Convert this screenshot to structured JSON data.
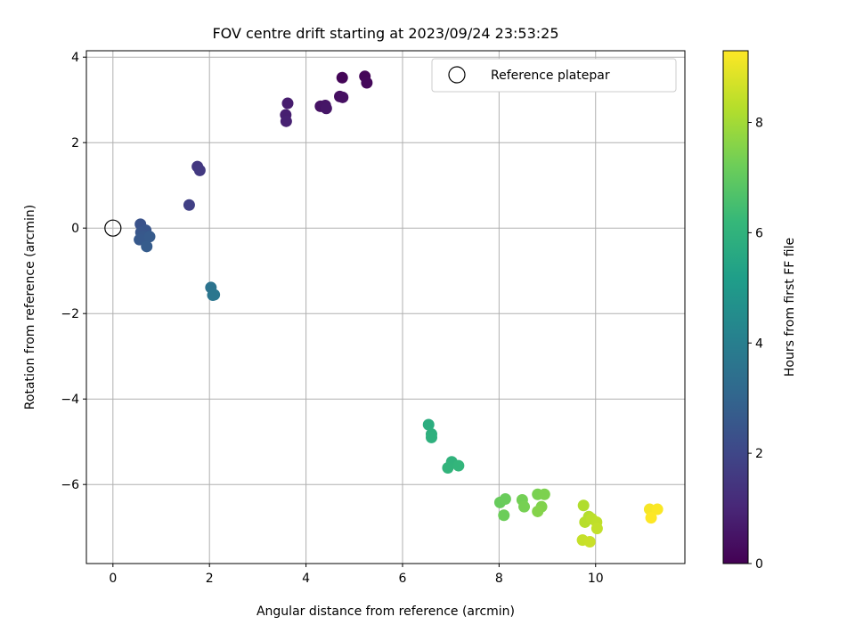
{
  "chart_data": {
    "type": "scatter",
    "title": "FOV centre drift starting at 2023/09/24 23:53:25",
    "xlabel": "Angular distance from reference (arcmin)",
    "ylabel": "Rotation from reference (arcmin)",
    "xlim": [
      -0.55,
      11.85
    ],
    "ylim": [
      -7.85,
      4.15
    ],
    "xticks": [
      0,
      2,
      4,
      6,
      8,
      10
    ],
    "yticks": [
      -6,
      -4,
      -2,
      0,
      2,
      4
    ],
    "grid": true,
    "legend": {
      "placement": "top-right",
      "entries": [
        "Reference platepar"
      ]
    },
    "reference_point": {
      "x": 0,
      "y": 0
    },
    "colorbar": {
      "label": "Hours from first FF file",
      "range": [
        0,
        9.3
      ],
      "ticks": [
        0,
        2,
        4,
        6,
        8
      ],
      "colormap": [
        "#440154",
        "#482878",
        "#3e4989",
        "#31688e",
        "#26828e",
        "#1f9e89",
        "#35b779",
        "#6ece58",
        "#b5de2b",
        "#fde725"
      ]
    },
    "points": [
      {
        "x": 4.75,
        "y": 3.52,
        "c": 0.1
      },
      {
        "x": 5.22,
        "y": 3.55,
        "c": 0.15
      },
      {
        "x": 5.26,
        "y": 3.4,
        "c": 0.2
      },
      {
        "x": 4.7,
        "y": 3.08,
        "c": 0.35
      },
      {
        "x": 4.76,
        "y": 3.06,
        "c": 0.4
      },
      {
        "x": 4.3,
        "y": 2.85,
        "c": 0.45
      },
      {
        "x": 4.4,
        "y": 2.87,
        "c": 0.5
      },
      {
        "x": 4.42,
        "y": 2.8,
        "c": 0.55
      },
      {
        "x": 3.62,
        "y": 2.92,
        "c": 0.75
      },
      {
        "x": 3.58,
        "y": 2.65,
        "c": 0.8
      },
      {
        "x": 3.59,
        "y": 2.5,
        "c": 0.85
      },
      {
        "x": 1.75,
        "y": 1.44,
        "c": 1.5
      },
      {
        "x": 1.8,
        "y": 1.35,
        "c": 1.55
      },
      {
        "x": 1.58,
        "y": 0.54,
        "c": 1.8
      },
      {
        "x": 0.57,
        "y": 0.09,
        "c": 2.35
      },
      {
        "x": 0.68,
        "y": -0.05,
        "c": 2.45
      },
      {
        "x": 0.58,
        "y": -0.1,
        "c": 2.5
      },
      {
        "x": 0.62,
        "y": -0.2,
        "c": 2.55
      },
      {
        "x": 0.55,
        "y": -0.27,
        "c": 2.6
      },
      {
        "x": 0.76,
        "y": -0.2,
        "c": 2.65
      },
      {
        "x": 0.7,
        "y": -0.43,
        "c": 2.7
      },
      {
        "x": 2.03,
        "y": -1.39,
        "c": 3.55
      },
      {
        "x": 2.07,
        "y": -1.57,
        "c": 3.6
      },
      {
        "x": 2.1,
        "y": -1.56,
        "c": 3.65
      },
      {
        "x": 6.54,
        "y": -4.6,
        "c": 5.8
      },
      {
        "x": 6.6,
        "y": -4.82,
        "c": 5.85
      },
      {
        "x": 6.6,
        "y": -4.9,
        "c": 5.9
      },
      {
        "x": 7.02,
        "y": -5.47,
        "c": 6.0
      },
      {
        "x": 6.94,
        "y": -5.61,
        "c": 6.05
      },
      {
        "x": 7.16,
        "y": -5.56,
        "c": 6.1
      },
      {
        "x": 8.02,
        "y": -6.42,
        "c": 7.1
      },
      {
        "x": 8.13,
        "y": -6.34,
        "c": 7.15
      },
      {
        "x": 8.1,
        "y": -6.72,
        "c": 7.2
      },
      {
        "x": 8.48,
        "y": -6.36,
        "c": 7.3
      },
      {
        "x": 8.52,
        "y": -6.52,
        "c": 7.35
      },
      {
        "x": 8.8,
        "y": -6.23,
        "c": 7.4
      },
      {
        "x": 8.94,
        "y": -6.23,
        "c": 7.45
      },
      {
        "x": 8.88,
        "y": -6.52,
        "c": 7.5
      },
      {
        "x": 8.8,
        "y": -6.63,
        "c": 7.55
      },
      {
        "x": 9.75,
        "y": -6.49,
        "c": 8.2
      },
      {
        "x": 9.86,
        "y": -6.75,
        "c": 8.25
      },
      {
        "x": 9.78,
        "y": -6.88,
        "c": 8.3
      },
      {
        "x": 9.92,
        "y": -6.8,
        "c": 8.35
      },
      {
        "x": 10.02,
        "y": -6.88,
        "c": 8.4
      },
      {
        "x": 10.03,
        "y": -7.03,
        "c": 8.45
      },
      {
        "x": 9.73,
        "y": -7.3,
        "c": 8.5
      },
      {
        "x": 9.88,
        "y": -7.34,
        "c": 8.55
      },
      {
        "x": 11.12,
        "y": -6.58,
        "c": 9.2
      },
      {
        "x": 11.28,
        "y": -6.58,
        "c": 9.25
      },
      {
        "x": 11.15,
        "y": -6.78,
        "c": 9.3
      }
    ]
  }
}
